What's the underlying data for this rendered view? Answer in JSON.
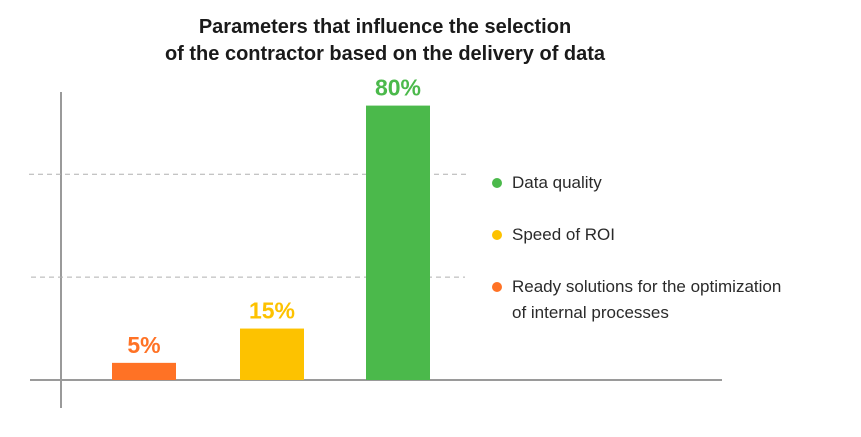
{
  "chart_data": {
    "type": "bar",
    "title_lines": [
      "Parameters that influence the selection",
      "of the contractor based on the delivery of data"
    ],
    "categories": [
      "Ready solutions for the optimization of internal processes",
      "Speed of ROI",
      "Data quality"
    ],
    "values": [
      5,
      15,
      80
    ],
    "value_labels": [
      "5%",
      "15%",
      "80%"
    ],
    "colors": [
      "#ff7225",
      "#fdc200",
      "#4bb94b"
    ],
    "ylim": [
      0,
      100
    ],
    "grid": "dashed",
    "legend_position": "right",
    "legend": [
      {
        "label": "Data quality",
        "color": "#4bb94b"
      },
      {
        "label": "Speed of ROI",
        "color": "#fdc200"
      },
      {
        "label_lines": [
          "Ready solutions for the optimization",
          "of internal processes"
        ],
        "color": "#ff7225"
      }
    ]
  }
}
